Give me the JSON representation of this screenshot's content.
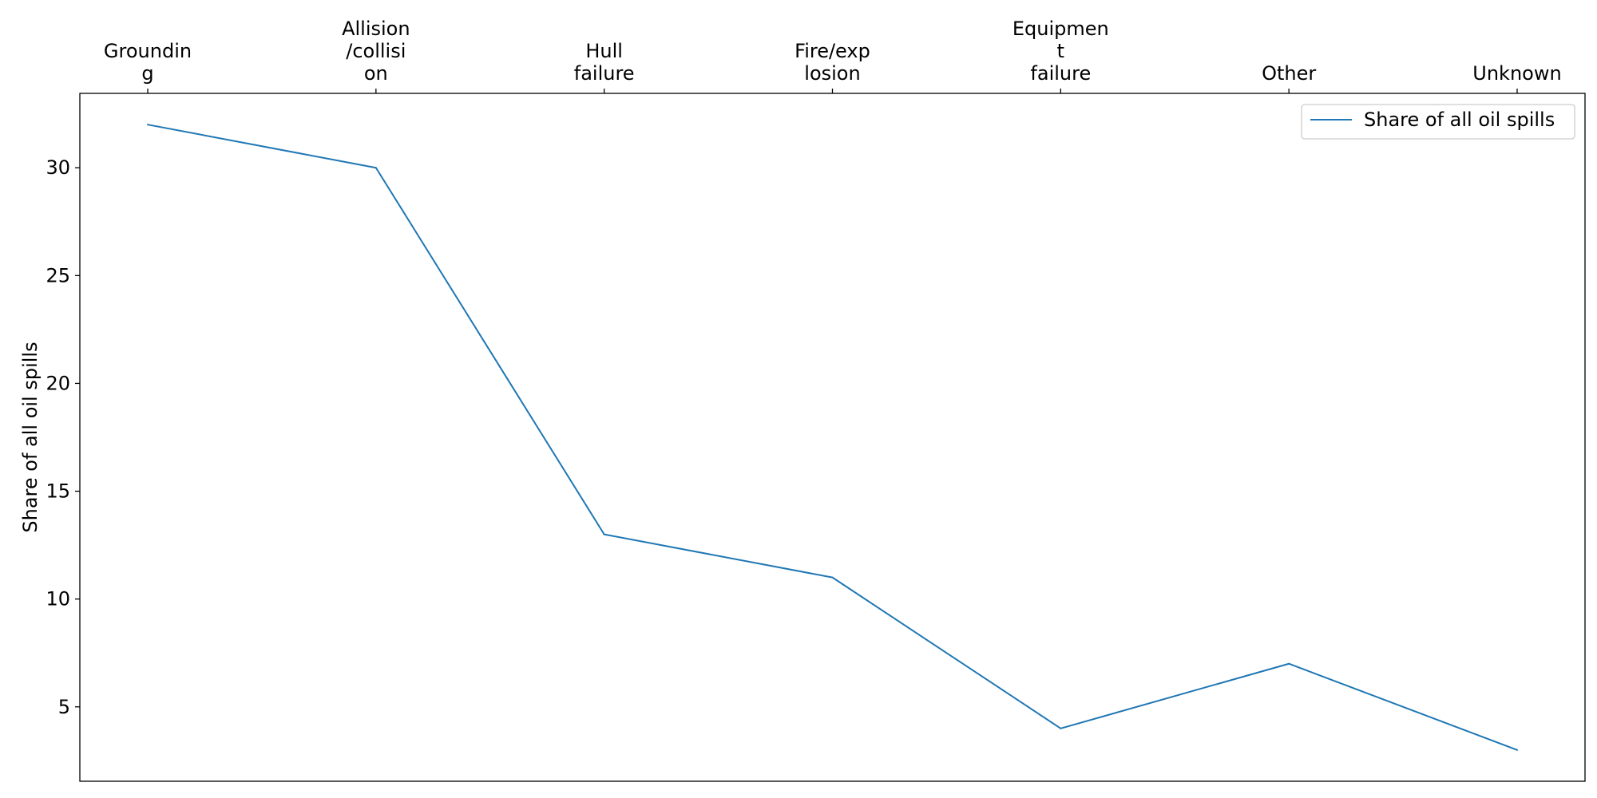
{
  "chart_data": {
    "type": "line",
    "categories": [
      [
        "Groundin",
        "g"
      ],
      [
        "Allision",
        "/collisi",
        "on"
      ],
      [
        "Hull",
        "failure"
      ],
      [
        "Fire/exp",
        "losion"
      ],
      [
        "Equipmen",
        "t",
        "failure"
      ],
      [
        "Other"
      ],
      [
        "Unknown"
      ]
    ],
    "x_axis_position": "top",
    "series": [
      {
        "name": "Share of all oil spills",
        "values": [
          32,
          30,
          13,
          11,
          4,
          7,
          3
        ],
        "color": "#1f77b4"
      }
    ],
    "ylabel": "Share of all oil spills",
    "ylim": [
      1.55,
      33.45
    ],
    "yticks": [
      5,
      10,
      15,
      20,
      25,
      30
    ],
    "grid": false,
    "legend_position": "top-right"
  }
}
